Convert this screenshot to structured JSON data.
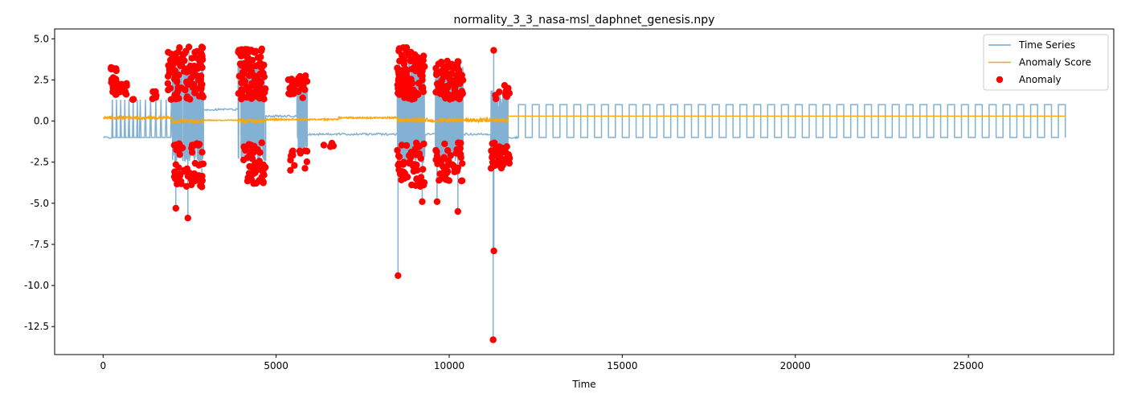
{
  "chart_data": {
    "type": "line",
    "title": "normality_3_3_nasa-msl_daphnet_genesis.npy",
    "xlabel": "Time",
    "ylabel": "",
    "xlim": [
      -1400,
      29200
    ],
    "ylim": [
      -14.2,
      5.6
    ],
    "xticks": [
      0,
      5000,
      10000,
      15000,
      20000,
      25000
    ],
    "yticks": [
      5.0,
      2.5,
      0.0,
      -2.5,
      -5.0,
      -7.5,
      -10.0,
      -12.5
    ],
    "grid": false,
    "legend_position": "top-right",
    "colors": {
      "time_series": "#74a9cf",
      "anomaly_score": "#ffa500",
      "anomaly": "#ff0000"
    },
    "series": [
      {
        "name": "Time Series",
        "kind": "line",
        "segments": [
          {
            "start": 0,
            "end": 250,
            "pattern": "flat",
            "level": -1.0
          },
          {
            "start": 250,
            "end": 1050,
            "pattern": "sawtooth",
            "low": -1.0,
            "high": 1.3,
            "period": 120
          },
          {
            "start": 1050,
            "end": 2000,
            "pattern": "sawtooth",
            "low": -1.0,
            "high": 1.3,
            "period": 150
          },
          {
            "start": 2000,
            "end": 2900,
            "pattern": "dense",
            "low": -2.5,
            "high": 3.5
          },
          {
            "start": 2900,
            "end": 3900,
            "pattern": "flat",
            "level": 0.7
          },
          {
            "start": 3900,
            "end": 4700,
            "pattern": "dense",
            "low": -2.5,
            "high": 3.6
          },
          {
            "start": 4700,
            "end": 5600,
            "pattern": "flat",
            "level": 0.3
          },
          {
            "start": 5600,
            "end": 5900,
            "pattern": "dense",
            "low": -2.0,
            "high": 2.5
          },
          {
            "start": 5900,
            "end": 8500,
            "pattern": "flat",
            "level": -0.8
          },
          {
            "start": 8500,
            "end": 9300,
            "pattern": "dense",
            "low": -2.6,
            "high": 3.5
          },
          {
            "start": 9300,
            "end": 9600,
            "pattern": "flat",
            "level": -0.8
          },
          {
            "start": 9600,
            "end": 10400,
            "pattern": "dense",
            "low": -2.6,
            "high": 3.4
          },
          {
            "start": 10400,
            "end": 11200,
            "pattern": "flat",
            "level": -0.8
          },
          {
            "start": 11200,
            "end": 11700,
            "pattern": "dense",
            "low": -2.6,
            "high": 2.0
          },
          {
            "start": 11700,
            "end": 12000,
            "pattern": "flat",
            "level": -1.0
          },
          {
            "start": 12000,
            "end": 27800,
            "pattern": "square",
            "low": -1.0,
            "high": 1.0,
            "period": 400
          }
        ],
        "spikes": [
          {
            "x": 2100,
            "y": -5.3
          },
          {
            "x": 2450,
            "y": -5.9
          },
          {
            "x": 2480,
            "y": 4.5
          },
          {
            "x": 2850,
            "y": -4.0
          },
          {
            "x": 8520,
            "y": -9.4
          },
          {
            "x": 8560,
            "y": 4.4
          },
          {
            "x": 9650,
            "y": -4.9
          },
          {
            "x": 9220,
            "y": -4.9
          },
          {
            "x": 10250,
            "y": -5.5
          },
          {
            "x": 11270,
            "y": -13.3
          },
          {
            "x": 11285,
            "y": 4.3
          },
          {
            "x": 11290,
            "y": -7.9
          }
        ]
      },
      {
        "name": "Anomaly Score",
        "kind": "line",
        "segments": [
          {
            "start": 0,
            "end": 2000,
            "level": 0.2,
            "noise": 0.1
          },
          {
            "start": 2000,
            "end": 2900,
            "level": 0.0,
            "noise": 0.15
          },
          {
            "start": 2900,
            "end": 3900,
            "level": 0.05,
            "noise": 0.03
          },
          {
            "start": 3900,
            "end": 4700,
            "level": 0.0,
            "noise": 0.15
          },
          {
            "start": 4700,
            "end": 6800,
            "level": 0.1,
            "noise": 0.05
          },
          {
            "start": 6800,
            "end": 8500,
            "level": 0.2,
            "noise": 0.05
          },
          {
            "start": 8500,
            "end": 11700,
            "level": 0.05,
            "noise": 0.15
          },
          {
            "start": 11700,
            "end": 27800,
            "level": 0.3,
            "noise": 0.0
          }
        ]
      },
      {
        "name": "Anomaly",
        "kind": "scatter",
        "clusters": [
          {
            "x_start": 200,
            "x_end": 400,
            "y_low": 1.5,
            "y_high": 3.3,
            "count": 24
          },
          {
            "x_start": 400,
            "x_end": 700,
            "y_low": 1.3,
            "y_high": 2.3,
            "count": 12
          },
          {
            "x_start": 850,
            "x_end": 900,
            "y_low": 1.3,
            "y_high": 1.4,
            "count": 2
          },
          {
            "x_start": 1400,
            "x_end": 1550,
            "y_low": 1.3,
            "y_high": 1.8,
            "count": 6
          },
          {
            "x_start": 1850,
            "x_end": 2900,
            "y_low": 1.3,
            "y_high": 4.5,
            "count": 95
          },
          {
            "x_start": 2050,
            "x_end": 2900,
            "y_low": -4.0,
            "y_high": -1.3,
            "count": 55
          },
          {
            "x_start": 3900,
            "x_end": 4700,
            "y_low": 1.3,
            "y_high": 4.4,
            "count": 110
          },
          {
            "x_start": 4050,
            "x_end": 4700,
            "y_low": -3.8,
            "y_high": -1.3,
            "count": 45
          },
          {
            "x_start": 5300,
            "x_end": 5900,
            "y_low": 1.3,
            "y_high": 2.8,
            "count": 30
          },
          {
            "x_start": 5400,
            "x_end": 5900,
            "y_low": -3.2,
            "y_high": -1.3,
            "count": 14
          },
          {
            "x_start": 6200,
            "x_end": 6700,
            "y_low": -1.6,
            "y_high": -1.3,
            "count": 4
          },
          {
            "x_start": 8500,
            "x_end": 9300,
            "y_low": 1.3,
            "y_high": 4.5,
            "count": 110
          },
          {
            "x_start": 8500,
            "x_end": 9300,
            "y_low": -4.0,
            "y_high": -1.3,
            "count": 50
          },
          {
            "x_start": 9600,
            "x_end": 10400,
            "y_low": 1.3,
            "y_high": 3.7,
            "count": 90
          },
          {
            "x_start": 9600,
            "x_end": 10400,
            "y_low": -3.7,
            "y_high": -1.3,
            "count": 45
          },
          {
            "x_start": 11200,
            "x_end": 11750,
            "y_low": 1.3,
            "y_high": 2.2,
            "count": 12
          },
          {
            "x_start": 11200,
            "x_end": 11750,
            "y_low": -2.9,
            "y_high": -1.3,
            "count": 45
          }
        ],
        "points": [
          {
            "x": 2100,
            "y": -5.3
          },
          {
            "x": 2450,
            "y": -5.9
          },
          {
            "x": 2480,
            "y": 4.5
          },
          {
            "x": 2850,
            "y": 4.5
          },
          {
            "x": 2850,
            "y": -4.0
          },
          {
            "x": 4350,
            "y": -3.8
          },
          {
            "x": 8520,
            "y": -9.4
          },
          {
            "x": 8560,
            "y": 4.4
          },
          {
            "x": 9650,
            "y": -4.9
          },
          {
            "x": 9220,
            "y": -4.9
          },
          {
            "x": 10250,
            "y": -5.5
          },
          {
            "x": 11270,
            "y": -13.3
          },
          {
            "x": 11285,
            "y": 4.3
          },
          {
            "x": 11290,
            "y": -7.9
          }
        ]
      }
    ],
    "legend": [
      {
        "label": "Time Series",
        "kind": "line",
        "color": "#74a9cf"
      },
      {
        "label": "Anomaly Score",
        "kind": "line",
        "color": "#ffa500"
      },
      {
        "label": "Anomaly",
        "kind": "marker",
        "color": "#ff0000"
      }
    ]
  }
}
